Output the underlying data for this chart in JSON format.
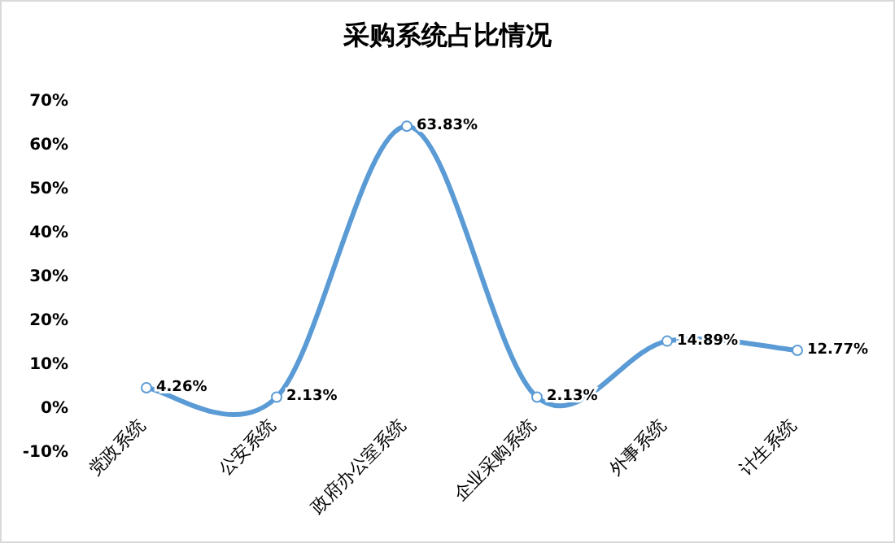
{
  "chart_data": {
    "type": "line",
    "title": "采购系统占比情况",
    "categories": [
      "党政系统",
      "公安系统",
      "政府办公室系统",
      "企业采购系统",
      "外事系统",
      "计生系统"
    ],
    "series": [
      {
        "color": "#5b9bd5",
        "values": [
          4.26,
          2.13,
          63.83,
          2.13,
          14.89,
          12.77
        ],
        "value_labels": [
          "4.26%",
          "2.13%",
          "63.83%",
          "2.13%",
          "14.89%",
          "12.77%"
        ]
      }
    ],
    "ylim": [
      -10,
      70
    ],
    "yticks": [
      {
        "value": -10,
        "label": "-10%"
      },
      {
        "value": 0,
        "label": "0%"
      },
      {
        "value": 10,
        "label": "10%"
      },
      {
        "value": 20,
        "label": "20%"
      },
      {
        "value": 30,
        "label": "30%"
      },
      {
        "value": 40,
        "label": "40%"
      },
      {
        "value": 50,
        "label": "50%"
      },
      {
        "value": 60,
        "label": "60%"
      },
      {
        "value": 70,
        "label": "70%"
      }
    ],
    "marker": "circle",
    "grid": false
  }
}
